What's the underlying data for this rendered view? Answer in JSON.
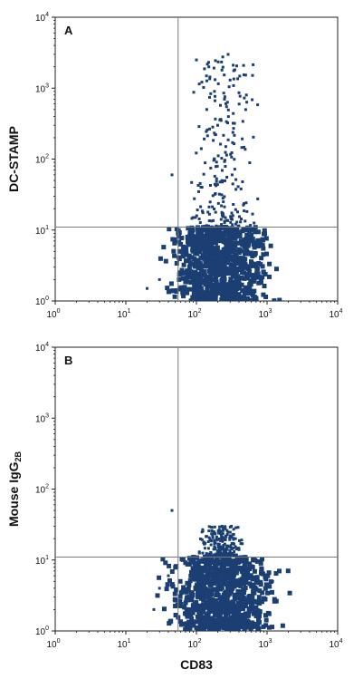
{
  "chart_data": [
    {
      "type": "scatter",
      "panel_label": "A",
      "xlabel": "",
      "ylabel": "DC-STAMP",
      "ylabel_sub": "",
      "xscale": "log",
      "yscale": "log",
      "xlim": [
        1,
        10000
      ],
      "ylim": [
        1,
        10000
      ],
      "x_ticks": [
        {
          "base": "10",
          "exp": "0"
        },
        {
          "base": "10",
          "exp": "1"
        },
        {
          "base": "10",
          "exp": "2"
        },
        {
          "base": "10",
          "exp": "3"
        },
        {
          "base": "10",
          "exp": "4"
        }
      ],
      "y_ticks": [
        {
          "base": "10",
          "exp": "0"
        },
        {
          "base": "10",
          "exp": "1"
        },
        {
          "base": "10",
          "exp": "2"
        },
        {
          "base": "10",
          "exp": "3"
        },
        {
          "base": "10",
          "exp": "4"
        }
      ],
      "gate": {
        "x": 55,
        "y": 11
      },
      "point_color": "#1b3f73",
      "populations": [
        {
          "x_range": [
            55,
            800
          ],
          "y_range": [
            1,
            11
          ],
          "density": "dense"
        },
        {
          "x_range": [
            70,
            900
          ],
          "y_range": [
            11,
            3000
          ],
          "density": "sparse"
        }
      ],
      "sample_points": [
        [
          100,
          2500
        ],
        [
          150,
          2000
        ],
        [
          230,
          1800
        ],
        [
          300,
          1300
        ],
        [
          180,
          900
        ],
        [
          250,
          700
        ],
        [
          140,
          500
        ],
        [
          200,
          300
        ],
        [
          260,
          150
        ],
        [
          180,
          100
        ],
        [
          320,
          60
        ],
        [
          120,
          40
        ],
        [
          240,
          25
        ],
        [
          90,
          15
        ],
        [
          420,
          13
        ],
        [
          45,
          60
        ],
        [
          30,
          2
        ],
        [
          20,
          1.5
        ]
      ]
    },
    {
      "type": "scatter",
      "panel_label": "B",
      "xlabel": "CD83",
      "ylabel": "Mouse IgG",
      "ylabel_sub": "2B",
      "xscale": "log",
      "yscale": "log",
      "xlim": [
        1,
        10000
      ],
      "ylim": [
        1,
        10000
      ],
      "x_ticks": [
        {
          "base": "10",
          "exp": "0"
        },
        {
          "base": "10",
          "exp": "1"
        },
        {
          "base": "10",
          "exp": "2"
        },
        {
          "base": "10",
          "exp": "3"
        },
        {
          "base": "10",
          "exp": "4"
        }
      ],
      "y_ticks": [
        {
          "base": "10",
          "exp": "0"
        },
        {
          "base": "10",
          "exp": "1"
        },
        {
          "base": "10",
          "exp": "2"
        },
        {
          "base": "10",
          "exp": "3"
        },
        {
          "base": "10",
          "exp": "4"
        }
      ],
      "gate": {
        "x": 55,
        "y": 11
      },
      "point_color": "#1b3f73",
      "populations": [
        {
          "x_range": [
            55,
            1000
          ],
          "y_range": [
            1,
            11
          ],
          "density": "dense"
        },
        {
          "x_range": [
            100,
            500
          ],
          "y_range": [
            11,
            30
          ],
          "density": "sparse"
        }
      ],
      "sample_points": [
        [
          45,
          50
        ],
        [
          240,
          28
        ],
        [
          300,
          22
        ],
        [
          180,
          17
        ],
        [
          400,
          14
        ],
        [
          110,
          13
        ],
        [
          30,
          4
        ],
        [
          25,
          2
        ],
        [
          40,
          6
        ],
        [
          1200,
          5
        ]
      ]
    }
  ]
}
